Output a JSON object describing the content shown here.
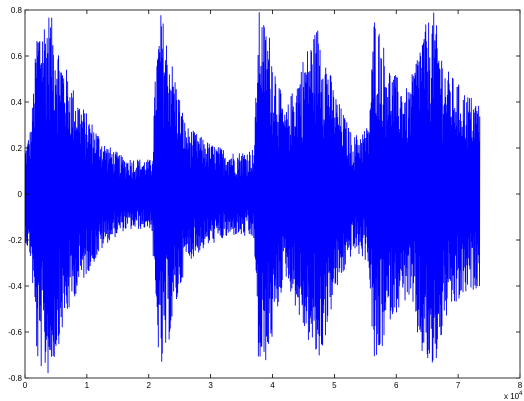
{
  "chart_data": {
    "type": "line",
    "title": "",
    "xlabel": "",
    "ylabel": "",
    "xlim": [
      0,
      8
    ],
    "ylim": [
      -0.8,
      0.8
    ],
    "x_ticks": [
      "0",
      "1",
      "2",
      "3",
      "4",
      "5",
      "6",
      "7",
      "8"
    ],
    "y_ticks": [
      "0.8",
      "0.6",
      "0.4",
      "0.2",
      "0",
      "-0.2",
      "-0.4",
      "-0.6",
      "-0.8"
    ],
    "x_multiplier_label": "x 10",
    "x_multiplier_exponent": "4",
    "grid": false,
    "series": [
      {
        "color": "#0000ff",
        "envelope": [
          {
            "x": 0.0,
            "amp": 0.2
          },
          {
            "x": 0.1,
            "amp": 0.3
          },
          {
            "x": 0.2,
            "amp": 0.75
          },
          {
            "x": 0.4,
            "amp": 0.8
          },
          {
            "x": 0.6,
            "amp": 0.6
          },
          {
            "x": 0.8,
            "amp": 0.45
          },
          {
            "x": 1.0,
            "amp": 0.35
          },
          {
            "x": 1.3,
            "amp": 0.22
          },
          {
            "x": 1.6,
            "amp": 0.16
          },
          {
            "x": 2.05,
            "amp": 0.15
          },
          {
            "x": 2.12,
            "amp": 0.6
          },
          {
            "x": 2.2,
            "amp": 0.8
          },
          {
            "x": 2.4,
            "amp": 0.55
          },
          {
            "x": 2.6,
            "amp": 0.3
          },
          {
            "x": 3.0,
            "amp": 0.22
          },
          {
            "x": 3.4,
            "amp": 0.18
          },
          {
            "x": 3.7,
            "amp": 0.2
          },
          {
            "x": 3.78,
            "amp": 0.8
          },
          {
            "x": 3.95,
            "amp": 0.7
          },
          {
            "x": 4.2,
            "amp": 0.35
          },
          {
            "x": 4.5,
            "amp": 0.6
          },
          {
            "x": 4.75,
            "amp": 0.75
          },
          {
            "x": 5.0,
            "amp": 0.45
          },
          {
            "x": 5.3,
            "amp": 0.25
          },
          {
            "x": 5.55,
            "amp": 0.3
          },
          {
            "x": 5.65,
            "amp": 0.8
          },
          {
            "x": 5.9,
            "amp": 0.55
          },
          {
            "x": 6.2,
            "amp": 0.45
          },
          {
            "x": 6.4,
            "amp": 0.7
          },
          {
            "x": 6.6,
            "amp": 0.8
          },
          {
            "x": 6.8,
            "amp": 0.55
          },
          {
            "x": 7.1,
            "amp": 0.45
          },
          {
            "x": 7.35,
            "amp": 0.4
          }
        ],
        "x_end": 7.35
      }
    ]
  }
}
